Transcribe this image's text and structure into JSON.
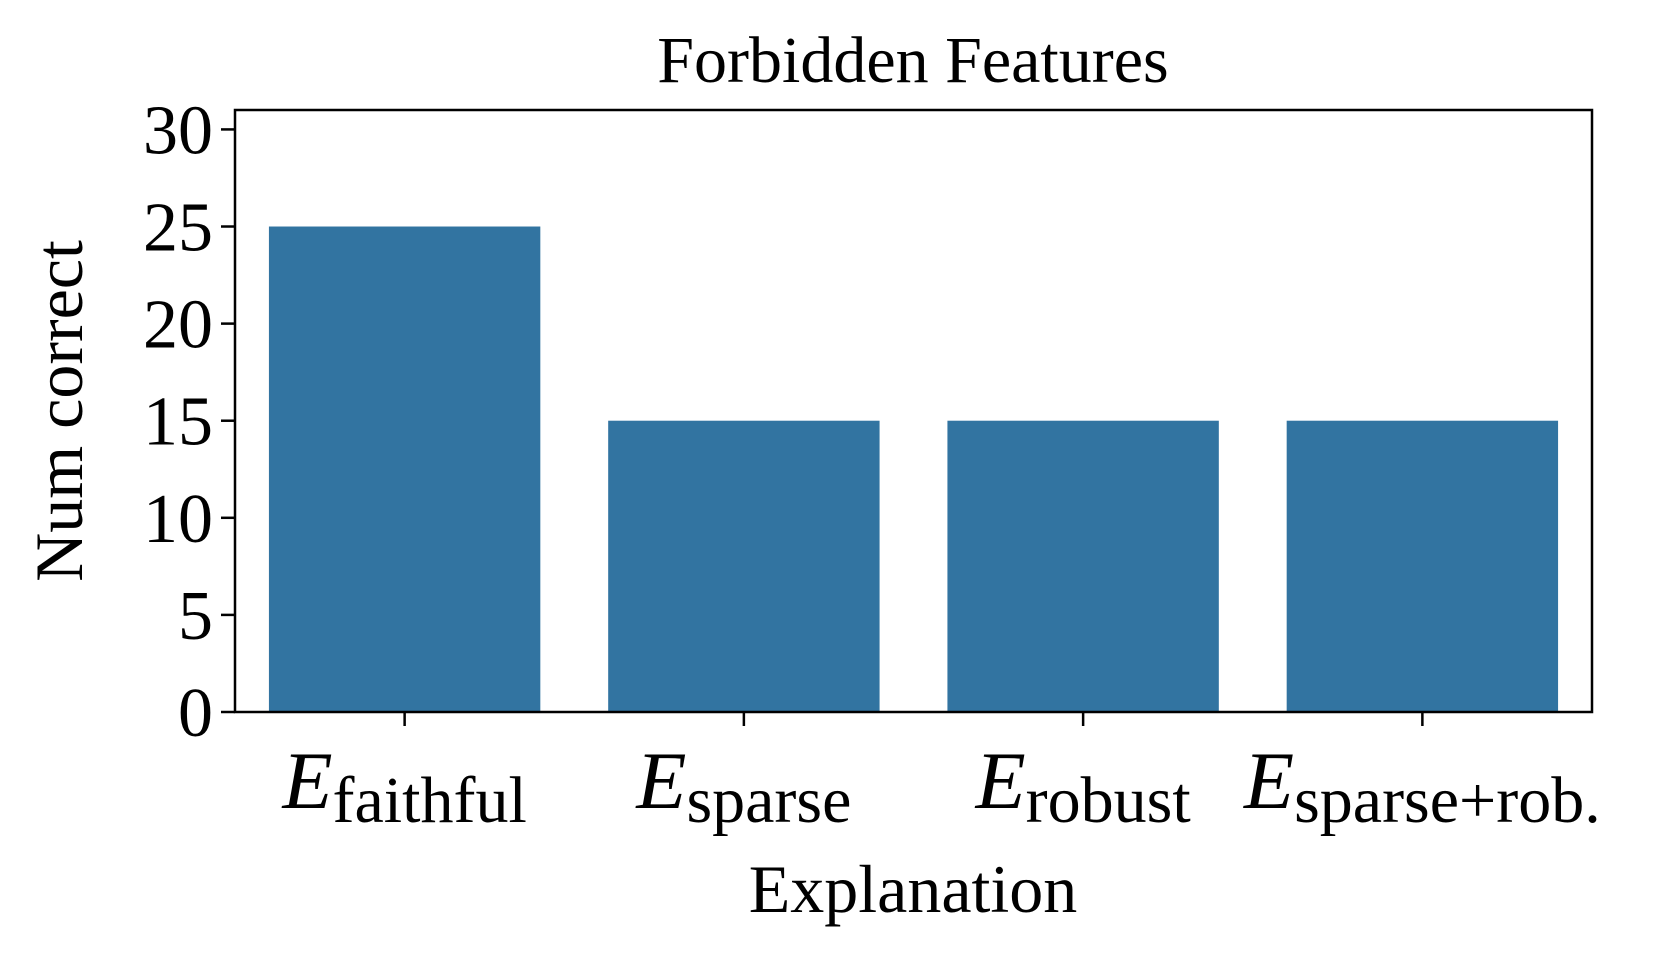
{
  "chart_data": {
    "type": "bar",
    "title": "Forbidden Features",
    "x_label": "Explanation",
    "y_label": "Num correct",
    "categories": [
      {
        "symbol": "E",
        "subscript": "faithful"
      },
      {
        "symbol": "E",
        "subscript": "sparse"
      },
      {
        "symbol": "E",
        "subscript": "robust"
      },
      {
        "symbol": "E",
        "subscript": "sparse+rob."
      }
    ],
    "values": [
      25,
      15,
      15,
      15
    ],
    "color": "#3274a1",
    "ylim": [
      0,
      31
    ],
    "yticks": [
      0,
      5,
      10,
      15,
      20,
      25,
      30
    ],
    "grid": false
  }
}
